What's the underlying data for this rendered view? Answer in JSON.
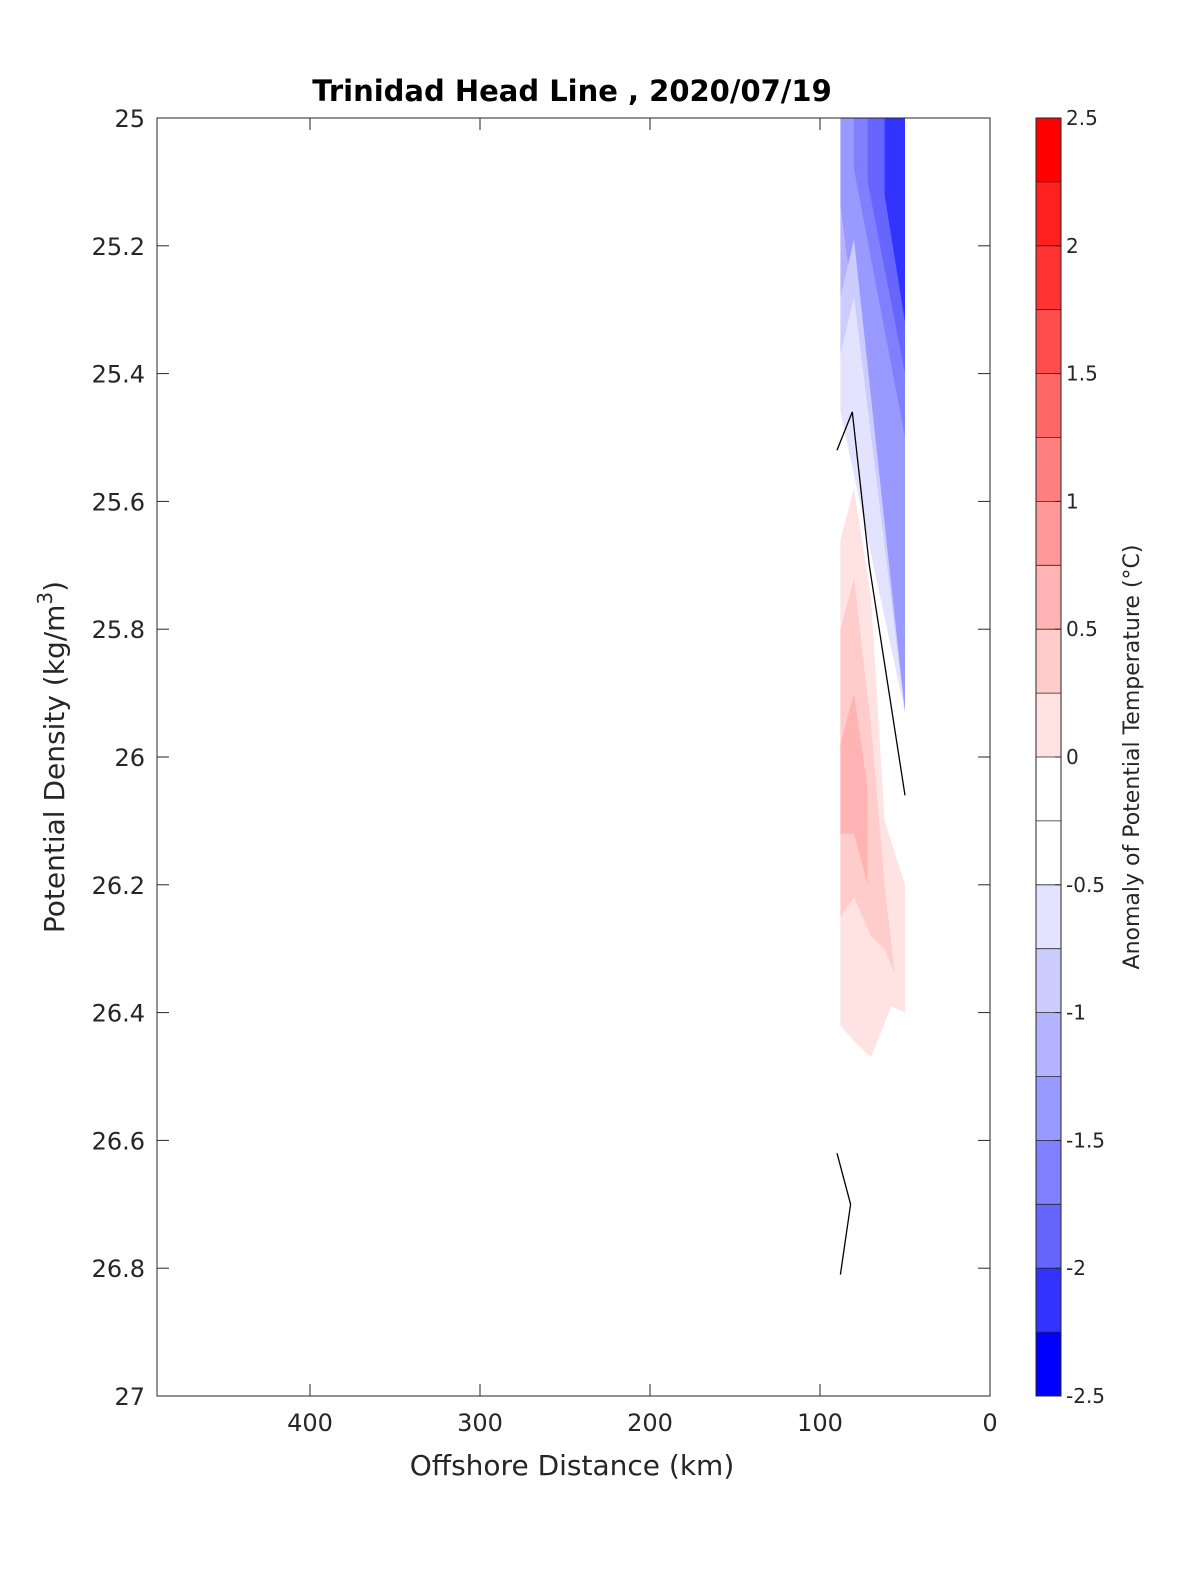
{
  "chart_data": {
    "type": "contour",
    "title": "Trinidad Head Line , 2020/07/19",
    "xlabel": "Offshore Distance (km)",
    "ylabel_main": "Potential Density (kg/m",
    "ylabel_sup": "3",
    "ylabel_close": ")",
    "xlim": [
      490,
      0
    ],
    "ylim": [
      25,
      27
    ],
    "y_reversed": true,
    "x_reversed": true,
    "xticks": [
      400,
      300,
      200,
      100,
      0
    ],
    "xtick_labels": [
      "400",
      "300",
      "200",
      "100",
      "0"
    ],
    "yticks": [
      25,
      25.2,
      25.4,
      25.6,
      25.8,
      26,
      26.2,
      26.4,
      26.6,
      26.8,
      27
    ],
    "ytick_labels": [
      "25",
      "25.2",
      "25.4",
      "25.6",
      "25.8",
      "26",
      "26.2",
      "26.4",
      "26.6",
      "26.8",
      "27"
    ],
    "colorbar": {
      "label": "Anomaly of Potential Temperature (°C)",
      "range": [
        -2.5,
        2.5
      ],
      "ticks": [
        2.5,
        2,
        1.5,
        1,
        0.5,
        0,
        -0.5,
        -1,
        -1.5,
        -2,
        -2.5
      ],
      "tick_labels": [
        "2.5",
        "2",
        "1.5",
        "1",
        "0.5",
        "0",
        "-0.5",
        "-1",
        "-1.5",
        "-2",
        "-2.5"
      ],
      "levels": [
        {
          "min": 2.25,
          "max": 2.5,
          "color": "#ff0000"
        },
        {
          "min": 2.0,
          "max": 2.25,
          "color": "#ff1f1f"
        },
        {
          "min": 1.75,
          "max": 2.0,
          "color": "#ff3333"
        },
        {
          "min": 1.5,
          "max": 1.75,
          "color": "#ff4d4d"
        },
        {
          "min": 1.25,
          "max": 1.5,
          "color": "#ff6666"
        },
        {
          "min": 1.0,
          "max": 1.25,
          "color": "#ff8080"
        },
        {
          "min": 0.75,
          "max": 1.0,
          "color": "#ff9999"
        },
        {
          "min": 0.5,
          "max": 0.75,
          "color": "#ffb3b3"
        },
        {
          "min": 0.25,
          "max": 0.5,
          "color": "#ffcccc"
        },
        {
          "min": 0.0,
          "max": 0.25,
          "color": "#ffe3e3"
        },
        {
          "min": -0.25,
          "max": 0.0,
          "color": "#ffffff"
        },
        {
          "min": -0.5,
          "max": -0.25,
          "color": "#ffffff"
        },
        {
          "min": -0.75,
          "max": -0.5,
          "color": "#e3e3ff"
        },
        {
          "min": -1.0,
          "max": -0.75,
          "color": "#ccccff"
        },
        {
          "min": -1.25,
          "max": -1.0,
          "color": "#b3b3ff"
        },
        {
          "min": -1.5,
          "max": -1.25,
          "color": "#9999ff"
        },
        {
          "min": -1.75,
          "max": -1.5,
          "color": "#8080ff"
        },
        {
          "min": -2.0,
          "max": -1.75,
          "color": "#6666ff"
        },
        {
          "min": -2.25,
          "max": -2.0,
          "color": "#3333ff"
        },
        {
          "min": -2.5,
          "max": -2.25,
          "color": "#0000ff"
        }
      ]
    },
    "regions": [
      {
        "level": -1.25,
        "color": "#9999ff",
        "points": [
          [
            88,
            25.0
          ],
          [
            50,
            25.0
          ],
          [
            50,
            25.93
          ],
          [
            88,
            25.14
          ]
        ]
      },
      {
        "level": -1.0,
        "color": "#b3b3ff",
        "points": [
          [
            88,
            25.14
          ],
          [
            50,
            25.93
          ],
          [
            50,
            25.93
          ],
          [
            88,
            25.28
          ]
        ]
      },
      {
        "level": -0.75,
        "color": "#ccccff",
        "points": [
          [
            88,
            25.28
          ],
          [
            80,
            25.19
          ],
          [
            50,
            25.93
          ],
          [
            88,
            25.37
          ]
        ]
      },
      {
        "level": -0.5,
        "color": "#e3e3ff",
        "points": [
          [
            88,
            25.37
          ],
          [
            80,
            25.28
          ],
          [
            50,
            25.93
          ],
          [
            88,
            25.46
          ]
        ]
      },
      {
        "level": -1.5,
        "color": "#8080ff",
        "points": [
          [
            80,
            25.0
          ],
          [
            50,
            25.0
          ],
          [
            50,
            25.5
          ],
          [
            80,
            25.08
          ]
        ]
      },
      {
        "level": -1.75,
        "color": "#6666ff",
        "points": [
          [
            72,
            25.0
          ],
          [
            50,
            25.0
          ],
          [
            50,
            25.4
          ],
          [
            72,
            25.1
          ]
        ]
      },
      {
        "level": -2.0,
        "color": "#3333ff",
        "points": [
          [
            62,
            25.0
          ],
          [
            50,
            25.0
          ],
          [
            50,
            25.32
          ],
          [
            62,
            25.12
          ]
        ]
      },
      {
        "level": 0.25,
        "color": "#ffe3e3",
        "points": [
          [
            88,
            25.66
          ],
          [
            80,
            25.58
          ],
          [
            70,
            25.75
          ],
          [
            62,
            26.1
          ],
          [
            50,
            26.2
          ],
          [
            50,
            26.4
          ],
          [
            58,
            26.39
          ],
          [
            70,
            26.47
          ],
          [
            78,
            26.45
          ],
          [
            88,
            26.42
          ]
        ]
      },
      {
        "level": 0.5,
        "color": "#ffcccc",
        "points": [
          [
            88,
            25.8
          ],
          [
            80,
            25.72
          ],
          [
            70,
            25.95
          ],
          [
            62,
            26.2
          ],
          [
            56,
            26.34
          ],
          [
            62,
            26.3
          ],
          [
            70,
            26.28
          ],
          [
            80,
            26.22
          ],
          [
            88,
            26.25
          ]
        ]
      },
      {
        "level": 0.75,
        "color": "#ffb3b3",
        "points": [
          [
            88,
            25.98
          ],
          [
            80,
            25.9
          ],
          [
            72,
            26.05
          ],
          [
            72,
            26.2
          ],
          [
            80,
            26.12
          ],
          [
            88,
            26.12
          ]
        ]
      }
    ],
    "zero_contours": [
      {
        "points": [
          [
            90,
            25.52
          ],
          [
            81,
            25.46
          ],
          [
            71,
            25.7
          ],
          [
            50,
            26.06
          ]
        ]
      },
      {
        "points": [
          [
            90,
            26.62
          ],
          [
            82,
            26.7
          ],
          [
            88,
            26.81
          ]
        ]
      }
    ]
  }
}
